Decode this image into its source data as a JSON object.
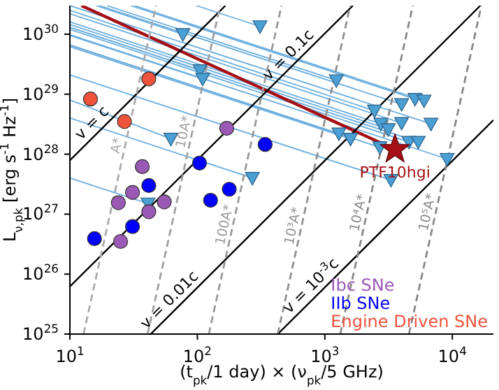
{
  "chart_data": {
    "type": "scatter",
    "xlabel": "(t$_{pk}$/1 day) × (ν$_{pk}$/5 GHz)",
    "ylabel": "L$_{ν,pk}$ [erg s$^{-1}$ Hz$^{-1}$]",
    "log": "xy",
    "xlim": [
      10,
      21000
    ],
    "ylim": [
      1e+25,
      3e+30
    ],
    "xticks": [
      {
        "value": 10,
        "label": "10$^{1}$"
      },
      {
        "value": 100,
        "label": "10$^{2}$"
      },
      {
        "value": 1000,
        "label": "10$^{3}$"
      },
      {
        "value": 10000,
        "label": "10$^{4}$"
      }
    ],
    "yticks": [
      {
        "value": 1e+25,
        "label": "10$^{25}$"
      },
      {
        "value": 1e+26,
        "label": "10$^{26}$"
      },
      {
        "value": 1e+27,
        "label": "10$^{27}$"
      },
      {
        "value": 1e+28,
        "label": "10$^{28}$"
      },
      {
        "value": 1e+29,
        "label": "10$^{29}$"
      },
      {
        "value": 1e+30,
        "label": "10$^{30}$"
      }
    ],
    "grid": false,
    "legend": "bottom right",
    "series": [
      {
        "type": "line",
        "color": "#6aaee0",
        "x": [
          16,
          77
        ],
        "values": [
          3e+30,
          1e+30
        ]
      },
      {
        "type": "line",
        "color": "#6aaee0",
        "x": [
          10,
          105
        ],
        "values": [
          1.3e+30,
          2.5e+29
        ]
      },
      {
        "type": "line",
        "color": "#6aaee0",
        "x": [
          10,
          110
        ],
        "values": [
          9.5e+29,
          1.8e+29
        ]
      },
      {
        "type": "line",
        "color": "#6aaee0",
        "x": [
          10,
          62
        ],
        "values": [
          8e+28,
          1.8e+28
        ]
      },
      {
        "type": "line",
        "color": "#6aaee0",
        "x": [
          10,
          270
        ],
        "values": [
          4e+28,
          4e+27
        ]
      },
      {
        "type": "line",
        "color": "#6aaee0",
        "x": [
          10,
          41
        ],
        "values": [
          4e+27,
          1.5e+27
        ]
      },
      {
        "type": "line",
        "color": "#6aaee0",
        "x": [
          98,
          310
        ],
        "values": [
          3e+30,
          1.35e+30
        ]
      },
      {
        "type": "line",
        "color": "#6aaee0",
        "x": [
          19.5,
          1230
        ],
        "values": [
          3e+30,
          1.7e+29
        ]
      },
      {
        "type": "line",
        "color": "#6aaee0",
        "x": [
          30,
          5100
        ],
        "values": [
          3e+30,
          8.3e+28
        ]
      },
      {
        "type": "line",
        "color": "#6aaee0",
        "x": [
          32,
          6000
        ],
        "values": [
          3e+30,
          7.8e+28
        ]
      },
      {
        "type": "line",
        "color": "#6aaee0",
        "x": [
          10,
          2450
        ],
        "values": [
          2.5e+30,
          5.3e+28
        ]
      },
      {
        "type": "line",
        "color": "#6aaee0",
        "x": [
          17,
          4000
        ],
        "values": [
          3e+30,
          6.8e+28
        ]
      },
      {
        "type": "line",
        "color": "#6aaee0",
        "x": [
          10,
          6800
        ],
        "values": [
          3e+30,
          3.2e+28
        ]
      },
      {
        "type": "line",
        "color": "#6aaee0",
        "x": [
          10,
          4000
        ],
        "values": [
          2.2e+30,
          3.3e+28
        ]
      },
      {
        "type": "line",
        "color": "#6aaee0",
        "x": [
          10,
          2750
        ],
        "values": [
          1.6e+30,
          3.2e+28
        ]
      },
      {
        "type": "line",
        "color": "#6aaee0",
        "x": [
          10,
          3150
        ],
        "values": [
          1.45e+30,
          2.6e+28
        ]
      },
      {
        "type": "line",
        "color": "#6aaee0",
        "x": [
          10,
          1290
        ],
        "values": [
          6.6e+29,
          2.2e+28
        ]
      },
      {
        "type": "line",
        "color": "#6aaee0",
        "x": [
          10,
          1590
        ],
        "values": [
          6.2e+29,
          1.8e+28
        ]
      },
      {
        "type": "line",
        "color": "#6aaee0",
        "x": [
          10,
          4570
        ],
        "values": [
          1.2e+30,
          1.6e+28
        ]
      },
      {
        "type": "line",
        "color": "#6aaee0",
        "x": [
          10,
          5400
        ],
        "values": [
          1.3e+30,
          1.6e+28
        ]
      },
      {
        "type": "line",
        "color": "#6aaee0",
        "x": [
          10,
          2700
        ],
        "values": [
          6.6e+29,
          1.3e+28
        ]
      },
      {
        "type": "line",
        "color": "#6aaee0",
        "x": [
          10,
          9100
        ],
        "values": [
          9.8e+29,
          8.3e+27
        ]
      },
      {
        "type": "line",
        "color": "#6aaee0",
        "x": [
          10,
          3300
        ],
        "values": [
          2.1e+29,
          3.7e+27
        ]
      },
      {
        "type": "line",
        "color": "#a50f15",
        "line_style": "solid",
        "x": [
          12.3,
          3550
        ],
        "values": [
          3e+30,
          1.2e+28
        ]
      },
      {
        "type": "line",
        "color": "#000000",
        "line_style": "solid",
        "x": [
          10,
          166
        ],
        "values": [
          7.9e+27,
          3e+30
        ]
      },
      {
        "type": "line",
        "color": "#000000",
        "line_style": "solid",
        "x": [
          10,
          1660
        ],
        "values": [
          6.2e+25,
          3e+30
        ]
      },
      {
        "type": "line",
        "color": "#000000",
        "line_style": "solid",
        "x": [
          43,
          16600
        ],
        "values": [
          1e+25,
          3e+30
        ]
      },
      {
        "type": "line",
        "color": "#000000",
        "line_style": "solid",
        "x": [
          427,
          21000
        ],
        "values": [
          1e+25,
          3.7e+28
        ]
      },
      {
        "type": "line",
        "color": "#aaaaaa",
        "line_style": "dashed",
        "x": [
          12.8,
          47.4
        ],
        "values": [
          1e+25,
          3e+30
        ]
      },
      {
        "type": "line",
        "color": "#a0a0a0",
        "line_style": "dashed",
        "x": [
          40.7,
          151
        ],
        "values": [
          1e+25,
          3e+30
        ]
      },
      {
        "type": "line",
        "color": "#999999",
        "line_style": "dashed",
        "x": [
          123,
          457
        ],
        "values": [
          1e+25,
          3e+30
        ]
      },
      {
        "type": "line",
        "color": "#909090",
        "line_style": "dashed",
        "x": [
          427,
          1580
        ],
        "values": [
          1e+25,
          3e+30
        ]
      },
      {
        "type": "line",
        "color": "#888888",
        "line_style": "dashed",
        "x": [
          1320,
          4900
        ],
        "values": [
          1e+25,
          3e+30
        ]
      },
      {
        "type": "line",
        "color": "#888888",
        "line_style": "dashed",
        "x": [
          4570,
          16900
        ],
        "values": [
          1e+25,
          3e+30
        ]
      },
      {
        "marker": "triangle",
        "color": "#4a9fd4",
        "x": [
          77,
          105,
          110,
          62,
          270,
          41,
          310,
          1230,
          5100,
          6000,
          2450,
          4000,
          6800,
          4000,
          2750,
          3150,
          1290,
          1590,
          4570,
          5400,
          2700,
          9100,
          3300
        ],
        "values": [
          1e+30,
          2.5e+29,
          1.8e+29,
          1.8e+28,
          4e+27,
          1.5e+27,
          1.35e+30,
          1.7e+29,
          8.3e+28,
          7.8e+28,
          5.3e+28,
          6.8e+28,
          3.2e+28,
          3.3e+28,
          3.2e+28,
          2.6e+28,
          2.2e+28,
          1.8e+28,
          1.6e+28,
          1.6e+28,
          1.3e+28,
          8.3e+27,
          3.7e+27
        ]
      },
      {
        "marker": "circle",
        "name": "Ibc SNe",
        "color": "#9b59b6",
        "x": [
          24,
          31,
          41.6,
          55,
          25,
          37,
          170
        ],
        "values": [
          1.55e+27,
          2.3e+27,
          1.1e+27,
          1.6e+27,
          3.5e+26,
          6.2e+27,
          2.7e+28
        ]
      },
      {
        "marker": "circle",
        "name": "IIb SNe",
        "color": "#0000ff",
        "x": [
          15.6,
          41.6,
          31,
          127,
          178,
          104,
          340
        ],
        "values": [
          3.9e+26,
          3e+27,
          6.2e+26,
          1.7e+27,
          2.6e+27,
          7.1e+27,
          1.45e+28
        ]
      },
      {
        "marker": "circle",
        "name": "Engine Driven SNe",
        "color": "#f0533c",
        "x": [
          14.5,
          41.6,
          26.8
        ],
        "values": [
          8.3e+28,
          1.8e+29,
          3.5e+28
        ]
      },
      {
        "marker": "star",
        "color": "#a50f15",
        "x": [
          3550
        ],
        "values": [
          1.2e+28
        ]
      }
    ],
    "annotations": [
      {
        "text": "PTF10hgi",
        "x": 3550,
        "y": 1.2e+28
      },
      {
        "text": "v = c",
        "x": 17,
        "y": 2.5e+28
      },
      {
        "text": "v = 0.1c",
        "x": 590,
        "y": 3.4e+29
      },
      {
        "text": "v = 0.01c",
        "x": 69,
        "y": 2.8e+25
      },
      {
        "text": "v = 10$^{-3}$c",
        "x": 890,
        "y": 4.8e+25
      },
      {
        "text": "A*",
        "x": 27,
        "y": 1.3e+28
      },
      {
        "text": "10A*",
        "x": 90.8,
        "y": 2.2e+28
      },
      {
        "text": "100A*",
        "x": 189,
        "y": 6.2e+26
      },
      {
        "text": "10³A*",
        "x": 652,
        "y": 5.9e+26
      },
      {
        "text": "10⁴A*",
        "x": 2123,
        "y": 9.8e+26
      },
      {
        "text": "10⁵A*",
        "x": 7380,
        "y": 1e+27
      }
    ]
  }
}
